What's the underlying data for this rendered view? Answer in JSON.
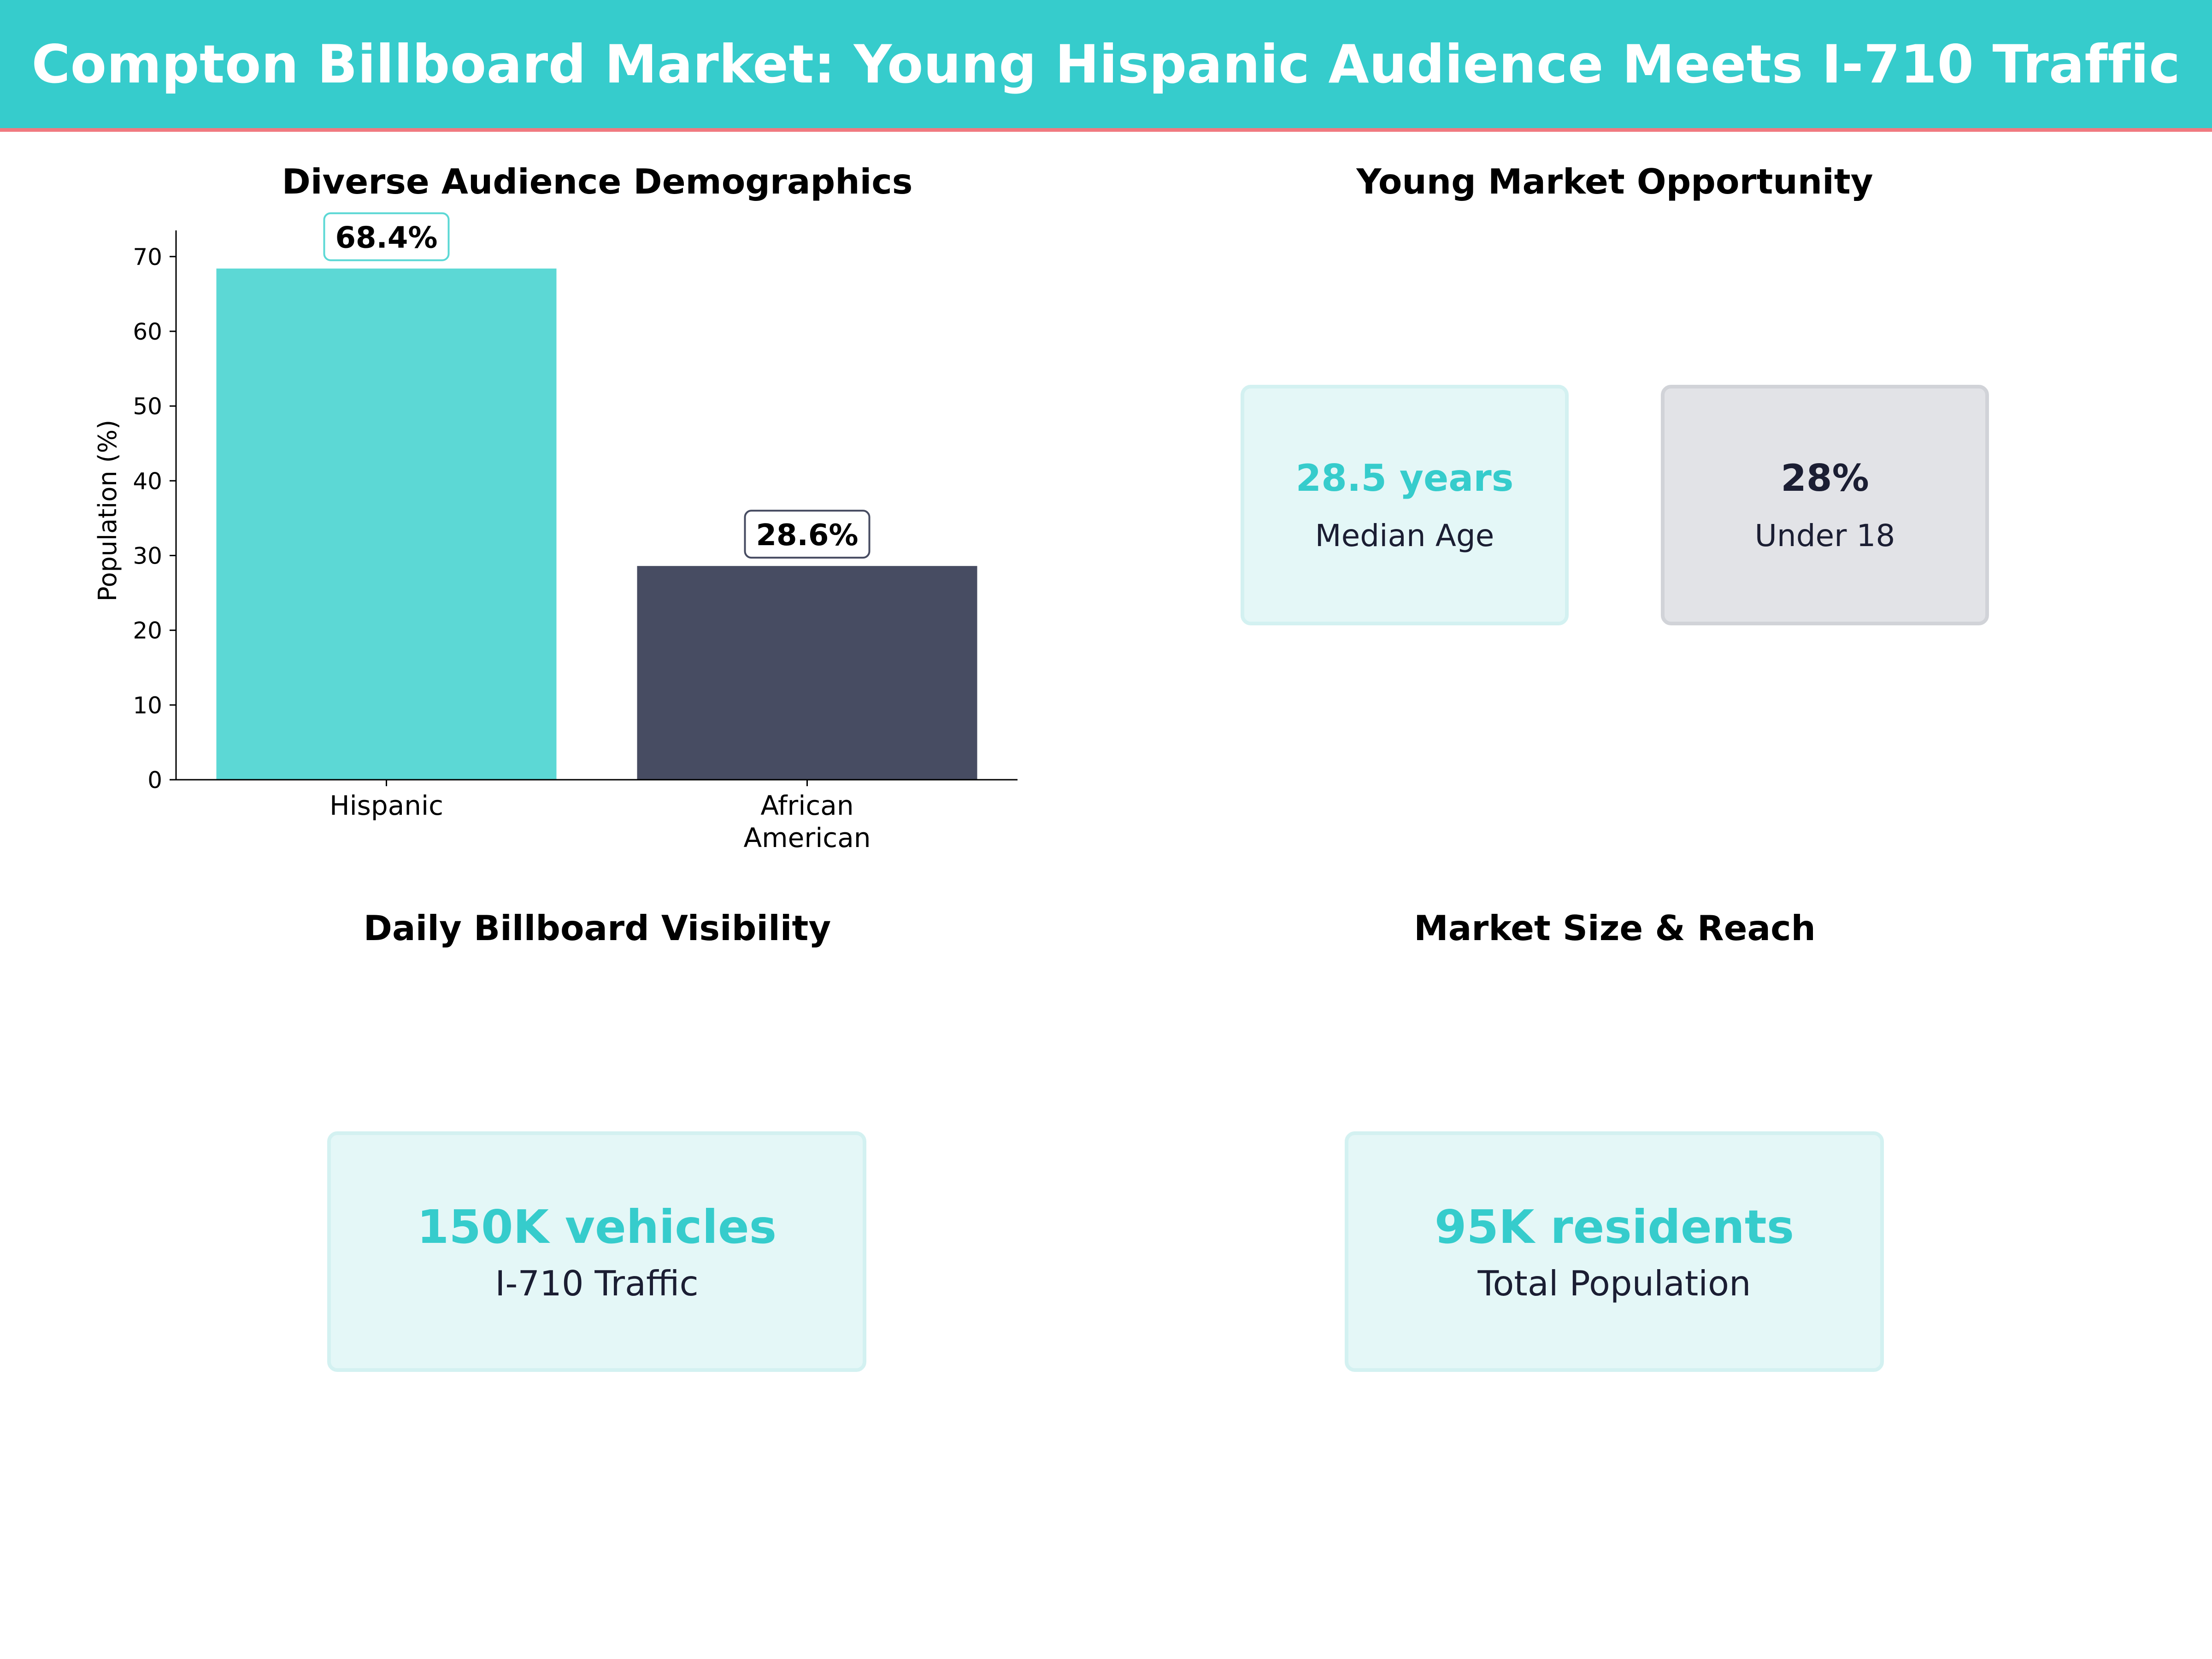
{
  "title": "Compton Billboard Market: Young Hispanic Audience Meets I-710 Traffic",
  "colors": {
    "header": "#36CCCC",
    "header_accent": "#F07A80",
    "hispanic_bar": "#5CD8D5",
    "african_american_bar": "#474C62",
    "teal_text": "#36CCCC",
    "navy_text": "#1B1E33"
  },
  "panels": {
    "demographics": {
      "title": "Diverse Audience Demographics"
    },
    "young_market": {
      "title": "Young Market Opportunity",
      "median_age": {
        "value": "28.5 years",
        "label": "Median Age"
      },
      "under_18": {
        "value": "28%",
        "label": "Under 18"
      }
    },
    "visibility": {
      "title": "Daily Billboard Visibility",
      "traffic": {
        "value": "150K vehicles",
        "label": "I-710 Traffic"
      }
    },
    "market_size": {
      "title": "Market Size & Reach",
      "population": {
        "value": "95K residents",
        "label": "Total Population"
      }
    }
  },
  "chart_data": {
    "type": "bar",
    "title": "Diverse Audience Demographics",
    "categories": [
      "Hispanic",
      "African American"
    ],
    "category_lines": [
      [
        "Hispanic"
      ],
      [
        "African",
        "American"
      ]
    ],
    "values": [
      68.4,
      28.6
    ],
    "value_labels": [
      "68.4%",
      "28.6%"
    ],
    "xlabel": "",
    "ylabel": "Population (%)",
    "ylim": [
      0,
      73.5
    ],
    "yticks": [
      0,
      10,
      20,
      30,
      40,
      50,
      60,
      70
    ],
    "grid": false
  }
}
